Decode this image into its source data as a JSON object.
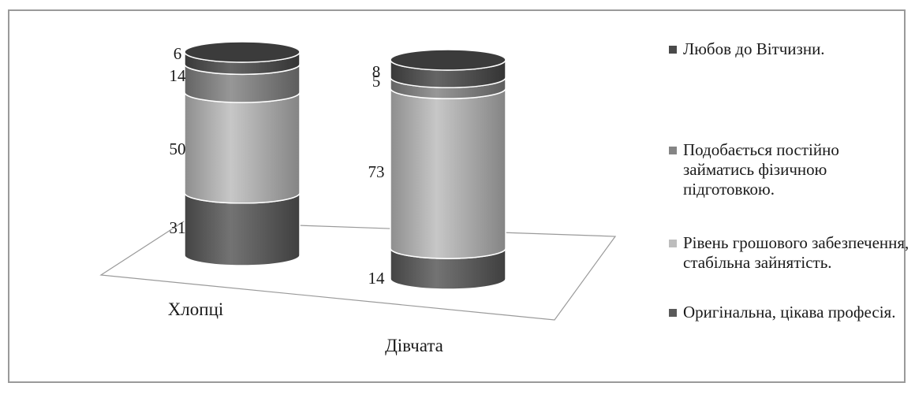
{
  "chart_data": {
    "type": "bar",
    "subtype": "stacked-cylinder-3d",
    "categories": [
      "Хлопці",
      "Дівчата"
    ],
    "series": [
      {
        "name": "Оригінальна,  цікава професія.",
        "values": [
          31,
          14
        ],
        "color": "#5a5a5a"
      },
      {
        "name": " Рівень грошового забезпечення, стабільна зайнятість.",
        "values": [
          50,
          73
        ],
        "color": "#bdbdbd"
      },
      {
        "name": "Подобається постійно займатись фізичною підготовкою.",
        "values": [
          14,
          5
        ],
        "color": "#858585"
      },
      {
        "name": "Любов до Вітчизни.",
        "values": [
          6,
          8
        ],
        "color": "#4a4a4a"
      }
    ],
    "legend_position": "right",
    "legend_order": "top-to-bottom reversed",
    "grid": false
  }
}
